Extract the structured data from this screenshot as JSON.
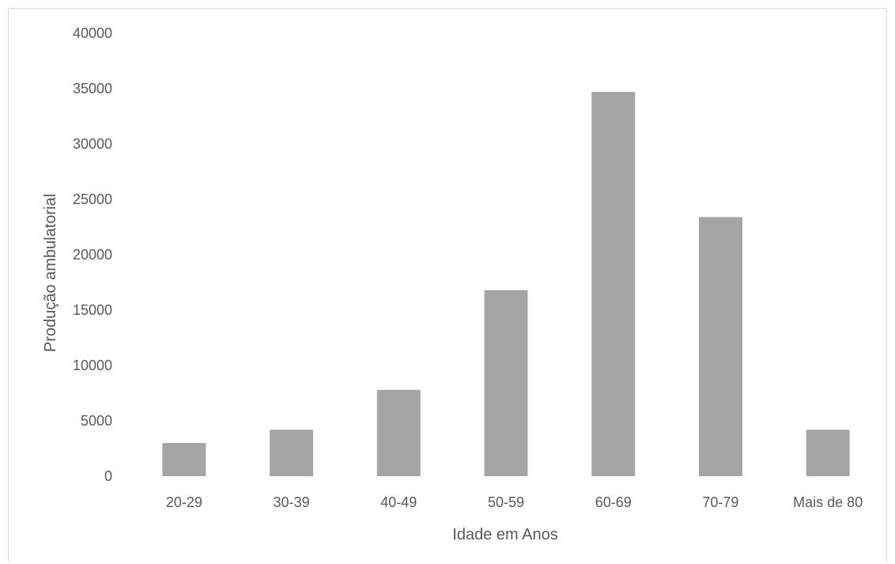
{
  "chart_data": {
    "type": "bar",
    "title": "",
    "xlabel": "Idade em Anos",
    "ylabel": "Produção ambulatorial",
    "categories": [
      "20-29",
      "30-39",
      "40-49",
      "50-59",
      "60-69",
      "70-79",
      "Mais de 80"
    ],
    "values": [
      3000,
      4200,
      7800,
      16800,
      34700,
      23400,
      4200
    ],
    "ylim": [
      0,
      40000
    ],
    "yticks": [
      "0",
      "5000",
      "10000",
      "15000",
      "20000",
      "25000",
      "30000",
      "35000",
      "40000"
    ],
    "grid": false,
    "legend": "none",
    "bar_color": "#a5a5a5"
  }
}
